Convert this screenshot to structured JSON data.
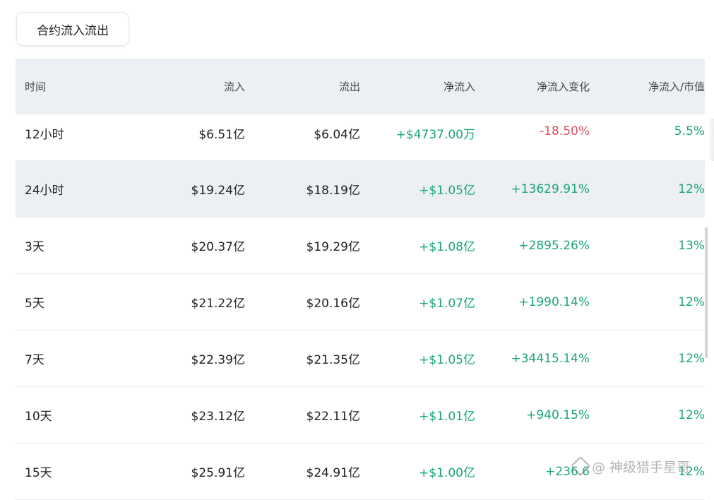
{
  "tab": {
    "label": "合约流入流出"
  },
  "columns": [
    "时间",
    "流入",
    "流出",
    "净流入",
    "净流入变化",
    "净流入/市值"
  ],
  "rows": [
    {
      "period": "12小时",
      "inflow": "$6.51亿",
      "outflow": "$6.04亿",
      "net": "+$4737.00万",
      "change": "-18.50%",
      "ratio": "5.5%"
    },
    {
      "period": "24小时",
      "inflow": "$19.24亿",
      "outflow": "$18.19亿",
      "net": "+$1.05亿",
      "change": "+13629.91%",
      "ratio": "12%"
    },
    {
      "period": "3天",
      "inflow": "$20.37亿",
      "outflow": "$19.29亿",
      "net": "+$1.08亿",
      "change": "+2895.26%",
      "ratio": "13%"
    },
    {
      "period": "5天",
      "inflow": "$21.22亿",
      "outflow": "$20.16亿",
      "net": "+$1.07亿",
      "change": "+1990.14%",
      "ratio": "12%"
    },
    {
      "period": "7天",
      "inflow": "$22.39亿",
      "outflow": "$21.35亿",
      "net": "+$1.05亿",
      "change": "+34415.14%",
      "ratio": "12%"
    },
    {
      "period": "10天",
      "inflow": "$23.12亿",
      "outflow": "$22.11亿",
      "net": "+$1.01亿",
      "change": "+940.15%",
      "ratio": "12%"
    },
    {
      "period": "15天",
      "inflow": "$25.91亿",
      "outflow": "$24.91亿",
      "net": "+$1.00亿",
      "change": "+236.6",
      "ratio": "12%"
    }
  ],
  "watermark": "@ 神级猎手星哥",
  "colors": {
    "positive": "#1aa57a",
    "negative": "#e04d5f",
    "header_bg": "#eceff3"
  }
}
